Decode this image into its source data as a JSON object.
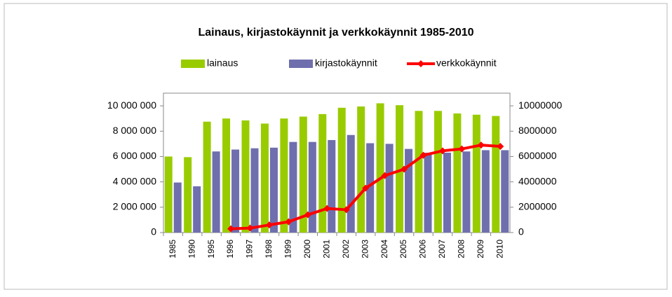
{
  "chart_data": {
    "type": "bar",
    "title": "Lainaus, kirjastokäynnit ja verkkokäynnit 1985-2010",
    "categories": [
      "1985",
      "1990",
      "1995",
      "1996",
      "1997",
      "1998",
      "1999",
      "2000",
      "2001",
      "2002",
      "2003",
      "2004",
      "2005",
      "2006",
      "2007",
      "2008",
      "2009",
      "2010"
    ],
    "series": [
      {
        "name": "lainaus",
        "color": "#99cc00",
        "values": [
          6000000,
          5950000,
          8750000,
          9000000,
          8850000,
          8600000,
          9000000,
          9150000,
          9350000,
          9850000,
          9950000,
          10200000,
          10050000,
          9600000,
          9600000,
          9400000,
          9300000,
          9200000
        ]
      },
      {
        "name": "kirjastokäynnit",
        "color": "#6f6fae",
        "values": [
          3950000,
          3650000,
          6400000,
          6550000,
          6650000,
          6700000,
          7150000,
          7150000,
          7300000,
          7700000,
          7050000,
          7000000,
          6600000,
          6300000,
          6300000,
          6400000,
          6500000,
          6500000
        ]
      },
      {
        "name": "verkkokäynnit",
        "color": "#ff0000",
        "type": "line",
        "axis": "y2",
        "values": [
          null,
          null,
          null,
          300000,
          350000,
          600000,
          850000,
          1400000,
          1900000,
          1800000,
          3500000,
          4500000,
          5000000,
          6100000,
          6450000,
          6600000,
          6900000,
          6800000
        ]
      }
    ],
    "ylim": [
      0,
      11000000
    ],
    "yticks": [
      0,
      {
        "value": 2000000,
        "label": "2 000 000"
      },
      {
        "value": 4000000,
        "label": "4 000 000"
      },
      {
        "value": 6000000,
        "label": "6 000 000"
      },
      {
        "value": 8000000,
        "label": "8 000 000"
      },
      {
        "value": 10000000,
        "label": "10 000 000"
      }
    ],
    "y2lim": [
      0,
      11000000
    ],
    "y2ticks": [
      0,
      2000000,
      4000000,
      6000000,
      8000000,
      10000000
    ],
    "legend": "top"
  }
}
